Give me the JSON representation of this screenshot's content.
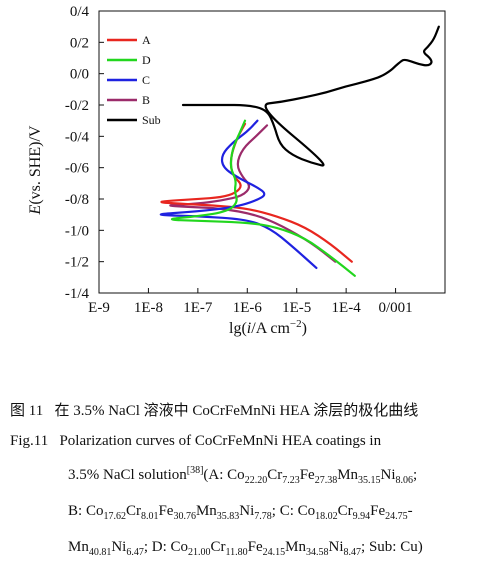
{
  "chart_data": {
    "type": "line",
    "xlabel": "lg(i/A cm⁻²)",
    "ylabel": "E(vs. SHE)/V",
    "x_scale": "log",
    "xlim": [
      1e-09,
      0.01
    ],
    "ylim": [
      -1.4,
      0.4
    ],
    "x_tick_labels": [
      "E-9",
      "1E-8",
      "1E-7",
      "1E-6",
      "1E-5",
      "1E-4",
      "0/001"
    ],
    "y_tick_labels": [
      "0/4",
      "0/2",
      "0/0",
      "-0/2",
      "-0/4",
      "-0/6",
      "-0/8",
      "-1/0",
      "-1/2",
      "-1/4"
    ],
    "legend_position": "top-left",
    "series": [
      {
        "name": "A",
        "color": "#e8261f",
        "points": [
          [
            9e-07,
            -0.32
          ],
          [
            6e-07,
            -0.42
          ],
          [
            4.5e-07,
            -0.55
          ],
          [
            5e-07,
            -0.65
          ],
          [
            8e-07,
            -0.71
          ],
          [
            6e-07,
            -0.76
          ],
          [
            3e-07,
            -0.79
          ],
          [
            1e-07,
            -0.8
          ],
          [
            3e-08,
            -0.81
          ],
          [
            1.5e-08,
            -0.82
          ],
          [
            4e-08,
            -0.83
          ],
          [
            2e-07,
            -0.84
          ],
          [
            1e-06,
            -0.86
          ],
          [
            4e-06,
            -0.91
          ],
          [
            1.5e-05,
            -0.98
          ],
          [
            5e-05,
            -1.09
          ],
          [
            0.00013,
            -1.2
          ]
        ]
      },
      {
        "name": "D",
        "color": "#22d61e",
        "points": [
          [
            9e-07,
            -0.3
          ],
          [
            7e-07,
            -0.38
          ],
          [
            5e-07,
            -0.48
          ],
          [
            4.5e-07,
            -0.6
          ],
          [
            6e-07,
            -0.68
          ],
          [
            5.5e-07,
            -0.75
          ],
          [
            6.5e-07,
            -0.82
          ],
          [
            4e-07,
            -0.88
          ],
          [
            1e-07,
            -0.91
          ],
          [
            2e-08,
            -0.93
          ],
          [
            1e-07,
            -0.94
          ],
          [
            1e-06,
            -0.95
          ],
          [
            4e-06,
            -0.98
          ],
          [
            1.5e-05,
            -1.05
          ],
          [
            5e-05,
            -1.17
          ],
          [
            0.00015,
            -1.29
          ]
        ]
      },
      {
        "name": "C",
        "color": "#1f22e0",
        "points": [
          [
            1.6e-06,
            -0.3
          ],
          [
            1e-06,
            -0.37
          ],
          [
            5e-07,
            -0.44
          ],
          [
            3e-07,
            -0.52
          ],
          [
            3.2e-07,
            -0.6
          ],
          [
            7e-07,
            -0.67
          ],
          [
            1.5e-06,
            -0.72
          ],
          [
            2.5e-06,
            -0.77
          ],
          [
            1.5e-06,
            -0.81
          ],
          [
            6e-07,
            -0.85
          ],
          [
            1e-07,
            -0.88
          ],
          [
            1e-08,
            -0.9
          ],
          [
            1e-07,
            -0.91
          ],
          [
            1e-06,
            -0.93
          ],
          [
            3e-06,
            -0.99
          ],
          [
            8e-06,
            -1.1
          ],
          [
            2.5e-05,
            -1.24
          ]
        ]
      },
      {
        "name": "B",
        "color": "#9b2b6a",
        "points": [
          [
            2.5e-06,
            -0.33
          ],
          [
            1.5e-06,
            -0.4
          ],
          [
            8e-07,
            -0.48
          ],
          [
            6e-07,
            -0.58
          ],
          [
            8e-07,
            -0.66
          ],
          [
            1.2e-06,
            -0.72
          ],
          [
            8e-07,
            -0.78
          ],
          [
            3e-07,
            -0.81
          ],
          [
            1e-07,
            -0.83
          ],
          [
            2e-08,
            -0.84
          ],
          [
            6e-08,
            -0.85
          ],
          [
            3e-07,
            -0.86
          ],
          [
            1.5e-06,
            -0.9
          ],
          [
            5e-06,
            -0.97
          ],
          [
            2e-05,
            -1.08
          ],
          [
            6e-05,
            -1.2
          ]
        ]
      },
      {
        "name": "Sub",
        "color": "#000000",
        "points": [
          [
            5e-08,
            -0.2
          ],
          [
            8e-08,
            -0.2
          ],
          [
            3e-07,
            -0.2
          ],
          [
            1e-06,
            -0.2
          ],
          [
            2.5e-06,
            -0.23
          ],
          [
            3.5e-06,
            -0.33
          ],
          [
            4.5e-06,
            -0.45
          ],
          [
            8e-06,
            -0.52
          ],
          [
            2e-05,
            -0.57
          ],
          [
            5e-05,
            -0.6
          ],
          [
            1.5e-06,
            -0.2
          ],
          [
            5e-06,
            -0.18
          ],
          [
            1.5e-05,
            -0.15
          ],
          [
            4e-05,
            -0.12
          ],
          [
            0.0001,
            -0.08
          ],
          [
            0.00025,
            -0.05
          ],
          [
            0.0005,
            -0.02
          ],
          [
            0.0008,
            0.02
          ],
          [
            0.001,
            0.05
          ],
          [
            0.0013,
            0.08
          ],
          [
            0.0015,
            0.09
          ],
          [
            0.002,
            0.08
          ],
          [
            0.003,
            0.06
          ],
          [
            0.0045,
            0.05
          ],
          [
            0.0055,
            0.07
          ],
          [
            0.005,
            0.1
          ],
          [
            0.0035,
            0.14
          ],
          [
            0.0045,
            0.17
          ],
          [
            0.006,
            0.22
          ],
          [
            0.0075,
            0.3
          ]
        ]
      }
    ]
  },
  "caption": {
    "cn_label": "图 11",
    "cn_text": "在 3.5% NaCl 溶液中 CoCrFeMnNi HEA 涂层的极化曲线",
    "en_label": "Fig.11",
    "en_line1": "Polarization curves of CoCrFeMnNi HEA coatings in",
    "en_line2_pre": "3.5% NaCl solution",
    "ref": "[38]",
    "en_line2_post": "(A: ",
    "comp_A": [
      [
        "Co",
        "22.20"
      ],
      [
        "Cr",
        "7.23"
      ],
      [
        "Fe",
        "27.38"
      ],
      [
        "Mn",
        "35.15"
      ],
      [
        "Ni",
        "8.06"
      ]
    ],
    "comp_B": [
      [
        "Co",
        "17.62"
      ],
      [
        "Cr",
        "8.01"
      ],
      [
        "Fe",
        "30.76"
      ],
      [
        "Mn",
        "35.83"
      ],
      [
        "Ni",
        "7.78"
      ]
    ],
    "comp_C": [
      [
        "Co",
        "18.02"
      ],
      [
        "Cr",
        "9.94"
      ],
      [
        "Fe",
        "24.75"
      ],
      [
        "Mn",
        "40.81"
      ],
      [
        "Ni",
        "6.47"
      ]
    ],
    "comp_D": [
      [
        "Co",
        "21.00"
      ],
      [
        "Cr",
        "11.80"
      ],
      [
        "Fe",
        "24.15"
      ],
      [
        "Mn",
        "34.58"
      ],
      [
        "Ni",
        "8.47"
      ]
    ],
    "sub_text": "Sub: Cu)"
  }
}
